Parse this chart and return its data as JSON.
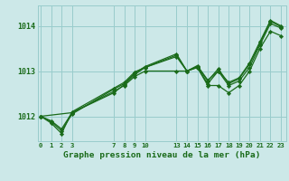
{
  "background_color": "#cce8e8",
  "grid_color": "#99cccc",
  "line_color": "#1a6b1a",
  "marker_color": "#1a6b1a",
  "xlabel": "Graphe pression niveau de la mer (hPa)",
  "yticks": [
    1012,
    1013,
    1014
  ],
  "xticks": [
    0,
    1,
    2,
    3,
    7,
    8,
    9,
    10,
    13,
    14,
    15,
    16,
    17,
    18,
    19,
    20,
    21,
    22,
    23
  ],
  "xlim": [
    -0.3,
    23.5
  ],
  "ylim": [
    1011.45,
    1014.45
  ],
  "lines": [
    {
      "x": [
        0,
        1,
        2,
        3,
        7,
        8,
        9,
        10,
        13,
        14,
        15,
        16,
        17,
        18,
        19,
        20,
        21,
        22,
        23
      ],
      "y": [
        1012.0,
        1011.88,
        1011.68,
        1012.05,
        1012.6,
        1012.72,
        1012.95,
        1013.1,
        1013.38,
        1013.0,
        1013.1,
        1012.78,
        1013.05,
        1012.72,
        1012.83,
        1013.15,
        1013.62,
        1014.1,
        1013.98
      ]
    },
    {
      "x": [
        0,
        1,
        2,
        3,
        7,
        8,
        9,
        10,
        13,
        14,
        15,
        16,
        17,
        18,
        19,
        20,
        21,
        22,
        23
      ],
      "y": [
        1012.0,
        1011.9,
        1011.72,
        1012.08,
        1012.55,
        1012.68,
        1012.88,
        1013.0,
        1013.0,
        1013.0,
        1013.08,
        1012.68,
        1012.68,
        1012.52,
        1012.68,
        1013.0,
        1013.5,
        1013.88,
        1013.78
      ]
    },
    {
      "x": [
        0,
        3,
        7,
        8,
        9,
        10,
        13,
        14,
        15,
        16,
        17,
        18,
        19,
        20,
        21,
        22,
        23
      ],
      "y": [
        1012.0,
        1012.08,
        1012.52,
        1012.7,
        1012.92,
        1013.08,
        1013.35,
        1013.0,
        1013.08,
        1012.72,
        1013.0,
        1012.68,
        1012.78,
        1013.08,
        1013.58,
        1014.05,
        1013.95
      ]
    },
    {
      "x": [
        0,
        1,
        2,
        3,
        7,
        8,
        9,
        10,
        13,
        14,
        15,
        16,
        17,
        18,
        19,
        20,
        21,
        22,
        23
      ],
      "y": [
        1012.0,
        1011.85,
        1011.62,
        1012.1,
        1012.62,
        1012.75,
        1012.98,
        1013.08,
        1013.32,
        1013.0,
        1013.12,
        1012.8,
        1013.0,
        1012.75,
        1012.85,
        1013.18,
        1013.65,
        1014.12,
        1014.0
      ]
    }
  ]
}
